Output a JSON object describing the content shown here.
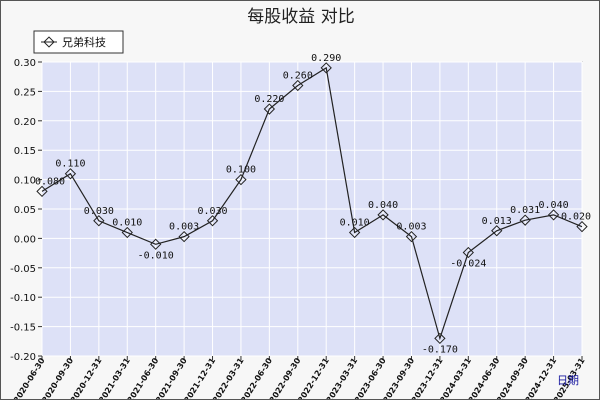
{
  "chart_data": {
    "type": "line",
    "title": "每股收益  对比",
    "xlabel": "日期",
    "ylabel": "",
    "ylim": [
      -0.2,
      0.3
    ],
    "yticks": [
      "0.30",
      "0.25",
      "0.20",
      "0.15",
      "0.10",
      "0.05",
      "0.00",
      "-0.05",
      "-0.10",
      "-0.15",
      "-0.20"
    ],
    "grid": true,
    "legend_position": "top-left",
    "colors": {
      "plot_background": "#dde1f7",
      "line": "#222222",
      "grid": "#ffffff"
    },
    "categories": [
      "2020-06-30",
      "2020-09-30",
      "2020-12-31",
      "2021-03-31",
      "2021-06-30",
      "2021-09-30",
      "2021-12-31",
      "2022-03-31",
      "2022-06-30",
      "2022-09-30",
      "2022-12-31",
      "2023-03-31",
      "2023-06-30",
      "2023-09-30",
      "2023-12-31",
      "2024-03-31",
      "2024-06-30",
      "2024-09-30",
      "2024-12-31",
      "2025-03-31"
    ],
    "series": [
      {
        "name": "兄弟科技",
        "values": [
          0.08,
          0.11,
          0.03,
          0.01,
          -0.01,
          0.003,
          0.03,
          0.1,
          0.22,
          0.26,
          0.29,
          0.01,
          0.04,
          0.003,
          -0.17,
          -0.024,
          0.013,
          0.031,
          0.04,
          0.02
        ],
        "labels": [
          "0.080",
          "0.110",
          "0.030",
          "0.010",
          "-0.010",
          "0.003",
          "0.030",
          "0.100",
          "0.220",
          "0.260",
          "0.290",
          "0.010",
          "0.040",
          "0.003",
          "-0.170",
          "-0.024",
          "0.013",
          "0.031",
          "0.040",
          "0.020"
        ]
      }
    ]
  }
}
